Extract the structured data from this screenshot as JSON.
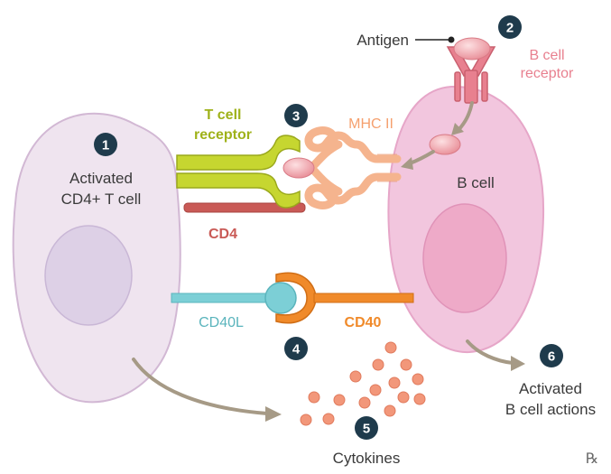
{
  "labels": {
    "antigen": "Antigen",
    "b_cell_receptor_line1": "B cell",
    "b_cell_receptor_line2": "receptor",
    "t_cell_receptor_line1": "T cell",
    "t_cell_receptor_line2": "receptor",
    "mhc_ii": "MHC II",
    "t_cell_line1": "Activated",
    "t_cell_line2": "CD4+ T cell",
    "b_cell": "B cell",
    "cd4": "CD4",
    "cd40l": "CD40L",
    "cd40": "CD40",
    "cytokines": "Cytokines",
    "activated_b_line1": "Activated",
    "activated_b_line2": "B cell actions",
    "rx_mark": "℞"
  },
  "steps": [
    "1",
    "2",
    "3",
    "4",
    "5",
    "6"
  ],
  "colors": {
    "t_cell_fill": "#efe4ef",
    "t_cell_nucleus": "#ddd0e6",
    "b_cell_fill": "#f2c6de",
    "b_cell_nucleus": "#eeaac8",
    "t_cell_receptor": "#b9cc2a",
    "mhc_ii": "#f5b48e",
    "b_cell_receptor": "#e8808f",
    "antigen": "#f0a0a8",
    "cd4": "#c95a56",
    "cd40l": "#7ccfd6",
    "cd40": "#f08a2a",
    "cytokine": "#f2977a",
    "arrow": "#a69a86",
    "badge": "#1f3b4c"
  }
}
